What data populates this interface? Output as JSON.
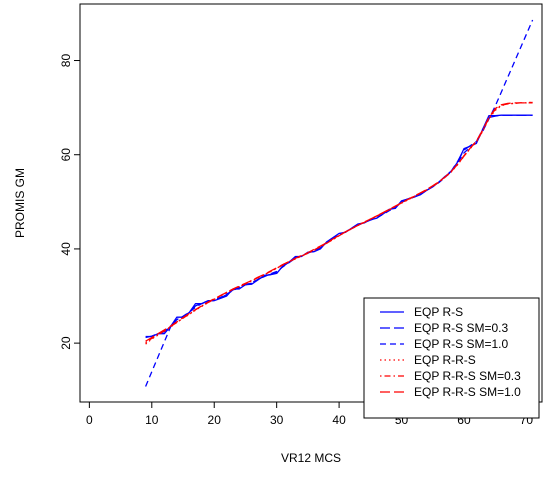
{
  "chart_data": {
    "type": "line",
    "xlabel": "VR12 MCS",
    "ylabel": "PROMIS GM",
    "xlim": [
      -1.5,
      72.5
    ],
    "ylim": [
      7.5,
      92
    ],
    "xticks": [
      0,
      10,
      20,
      30,
      40,
      50,
      60,
      70
    ],
    "yticks": [
      20,
      40,
      60,
      80
    ],
    "legend_position": "bottom-right",
    "series": [
      {
        "name": "EQP R-S",
        "color": "#0000FF",
        "dash": "solid",
        "x": [
          9,
          10,
          11,
          12,
          13,
          14,
          15,
          16,
          17,
          18,
          19,
          20,
          21,
          22,
          23,
          24,
          25,
          26,
          27,
          28,
          29,
          30,
          31,
          32,
          33,
          34,
          35,
          36,
          37,
          38,
          39,
          40,
          41,
          42,
          43,
          44,
          45,
          46,
          47,
          48,
          49,
          50,
          51,
          52,
          53,
          54,
          55,
          56,
          57,
          58,
          59,
          60,
          61,
          62,
          63,
          64,
          65,
          66,
          67,
          68,
          69,
          70,
          71
        ],
        "y": [
          21.4,
          21.4,
          22.0,
          22.0,
          23.5,
          25.5,
          25.5,
          26.5,
          28.4,
          28.4,
          29.0,
          29.0,
          29.5,
          30.0,
          31.5,
          31.5,
          32.4,
          32.5,
          33.4,
          34.4,
          34.5,
          34.8,
          36.4,
          37.2,
          38.4,
          38.4,
          39.3,
          39.4,
          40.0,
          41.5,
          42.4,
          43.3,
          43.5,
          44.4,
          45.3,
          45.5,
          46.2,
          46.5,
          47.4,
          48.4,
          48.6,
          50.2,
          50.6,
          51.0,
          51.5,
          52.4,
          53.2,
          54.2,
          55.4,
          56.5,
          58.5,
          61.3,
          61.8,
          62.4,
          65.4,
          68.3,
          68.3,
          68.4,
          68.4,
          68.4,
          68.4,
          68.4,
          68.4
        ]
      },
      {
        "name": "EQP R-S SM=0.3",
        "color": "#0000FF",
        "dash": "longdash",
        "x": [
          9,
          10,
          11,
          12,
          13,
          14,
          15,
          16,
          17,
          18,
          19,
          20,
          21,
          22,
          23,
          24,
          25,
          26,
          27,
          28,
          29,
          30,
          31,
          32,
          33,
          34,
          35,
          36,
          37,
          38,
          39,
          40,
          41,
          42,
          43,
          44,
          45,
          46,
          47,
          48,
          49,
          50,
          51,
          52,
          53,
          54,
          55,
          56,
          57,
          58,
          59,
          60,
          61,
          62,
          63,
          64,
          65,
          66,
          67,
          68,
          69,
          70,
          71
        ],
        "y": [
          21.2,
          21.5,
          22.0,
          22.4,
          23.6,
          25.0,
          25.6,
          26.5,
          27.9,
          28.5,
          28.9,
          29.1,
          29.6,
          30.3,
          31.3,
          31.7,
          32.4,
          32.7,
          33.5,
          34.2,
          34.6,
          35.1,
          36.3,
          37.2,
          38.2,
          38.5,
          39.2,
          39.6,
          40.2,
          41.4,
          42.3,
          43.1,
          43.6,
          44.4,
          45.2,
          45.6,
          46.2,
          46.6,
          47.4,
          48.3,
          48.8,
          50.1,
          50.6,
          51.1,
          51.6,
          52.4,
          53.3,
          54.2,
          55.4,
          56.6,
          58.6,
          61.0,
          61.9,
          62.8,
          65.4,
          67.9,
          68.2,
          68.4,
          68.4,
          68.4,
          68.4,
          68.4,
          68.4
        ]
      },
      {
        "name": "EQP R-S SM=1.0",
        "color": "#0000FF",
        "dash": "dashed",
        "x": [
          9,
          13,
          14,
          15,
          16,
          17,
          18,
          19,
          20,
          21,
          22,
          23,
          24,
          25,
          26,
          27,
          28,
          29,
          30,
          31,
          32,
          33,
          34,
          35,
          36,
          37,
          38,
          39,
          40,
          41,
          42,
          43,
          44,
          45,
          46,
          47,
          48,
          49,
          50,
          51,
          52,
          53,
          54,
          55,
          56,
          57,
          58,
          59,
          60,
          61,
          62,
          63,
          64,
          65,
          71
        ],
        "y": [
          10.8,
          23.4,
          25.0,
          25.7,
          26.6,
          27.6,
          28.4,
          28.9,
          29.2,
          29.7,
          30.4,
          31.2,
          31.8,
          32.4,
          32.8,
          33.5,
          34.1,
          34.7,
          35.2,
          36.2,
          37.1,
          38.0,
          38.5,
          39.1,
          39.7,
          40.3,
          41.3,
          42.2,
          43.0,
          43.6,
          44.3,
          45.0,
          45.6,
          46.1,
          46.6,
          47.3,
          48.1,
          48.8,
          49.9,
          50.5,
          51.0,
          51.6,
          52.4,
          53.2,
          54.1,
          55.2,
          56.5,
          58.3,
          60.4,
          61.6,
          62.8,
          65.0,
          67.6,
          70.3,
          88.6
        ]
      },
      {
        "name": "EQP R-R-S",
        "color": "#FF0000",
        "dash": "dotted",
        "x": [
          9,
          10,
          11,
          12,
          13,
          14,
          15,
          16,
          17,
          18,
          19,
          20,
          21,
          22,
          23,
          24,
          25,
          26,
          27,
          28,
          29,
          30,
          31,
          32,
          33,
          34,
          35,
          36,
          37,
          38,
          39,
          40,
          41,
          42,
          43,
          44,
          45,
          46,
          47,
          48,
          49,
          50,
          51,
          52,
          53,
          54,
          55,
          56,
          57,
          58,
          59,
          60,
          61,
          62,
          63,
          64,
          65,
          66,
          67,
          68,
          69,
          70,
          71
        ],
        "y": [
          19.8,
          20.9,
          21.7,
          22.5,
          23.4,
          24.4,
          25.3,
          26.1,
          27.0,
          27.8,
          28.6,
          29.3,
          30.0,
          30.7,
          31.4,
          32.0,
          32.6,
          33.2,
          33.8,
          34.5,
          35.2,
          35.9,
          36.6,
          37.3,
          37.9,
          38.5,
          39.1,
          39.7,
          40.4,
          41.2,
          42.0,
          42.8,
          43.6,
          44.3,
          45.0,
          45.7,
          46.3,
          46.9,
          47.6,
          48.3,
          49.0,
          49.7,
          50.4,
          51.1,
          51.8,
          52.5,
          53.3,
          54.2,
          55.2,
          56.4,
          57.9,
          59.7,
          61.3,
          62.7,
          65.0,
          67.6,
          69.4,
          70.4,
          70.8,
          70.9,
          71.0,
          71.0,
          71.2
        ]
      },
      {
        "name": "EQP R-R-S SM=0.3",
        "color": "#FF0000",
        "dash": "dashdot",
        "x": [
          9,
          10,
          11,
          12,
          13,
          14,
          15,
          16,
          17,
          18,
          19,
          20,
          21,
          22,
          23,
          24,
          25,
          26,
          27,
          28,
          29,
          30,
          31,
          32,
          33,
          34,
          35,
          36,
          37,
          38,
          39,
          40,
          41,
          42,
          43,
          44,
          45,
          46,
          47,
          48,
          49,
          50,
          51,
          52,
          53,
          54,
          55,
          56,
          57,
          58,
          59,
          60,
          61,
          62,
          63,
          64,
          65,
          66,
          67,
          68,
          69,
          70,
          71
        ],
        "y": [
          20.1,
          21.0,
          21.8,
          22.6,
          23.5,
          24.4,
          25.3,
          26.2,
          27.1,
          27.9,
          28.6,
          29.3,
          30.1,
          30.8,
          31.4,
          32.0,
          32.6,
          33.3,
          33.9,
          34.5,
          35.2,
          35.9,
          36.6,
          37.3,
          37.9,
          38.5,
          39.1,
          39.8,
          40.5,
          41.2,
          42.0,
          42.8,
          43.6,
          44.3,
          45.0,
          45.6,
          46.3,
          47.0,
          47.6,
          48.3,
          49.0,
          49.8,
          50.5,
          51.1,
          51.8,
          52.5,
          53.3,
          54.2,
          55.3,
          56.5,
          58.0,
          59.8,
          61.4,
          62.8,
          65.1,
          67.8,
          69.6,
          70.5,
          70.8,
          70.9,
          71.0,
          71.0,
          71.1
        ]
      },
      {
        "name": "EQP R-R-S SM=1.0",
        "color": "#FF0000",
        "dash": "longdash",
        "x": [
          9,
          10,
          11,
          12,
          13,
          14,
          15,
          16,
          17,
          18,
          19,
          20,
          21,
          22,
          23,
          24,
          25,
          26,
          27,
          28,
          29,
          30,
          31,
          32,
          33,
          34,
          35,
          36,
          37,
          38,
          39,
          40,
          41,
          42,
          43,
          44,
          45,
          46,
          47,
          48,
          49,
          50,
          51,
          52,
          53,
          54,
          55,
          56,
          57,
          58,
          59,
          60,
          61,
          62,
          63,
          64,
          65,
          66,
          67,
          68,
          69,
          70,
          71
        ],
        "y": [
          20.4,
          21.2,
          22.0,
          22.8,
          23.6,
          24.5,
          25.4,
          26.3,
          27.1,
          27.9,
          28.7,
          29.4,
          30.1,
          30.8,
          31.5,
          32.1,
          32.7,
          33.3,
          34.0,
          34.6,
          35.3,
          36.0,
          36.7,
          37.3,
          38.0,
          38.6,
          39.2,
          39.9,
          40.6,
          41.3,
          42.1,
          42.9,
          43.6,
          44.3,
          45.0,
          45.7,
          46.3,
          47.0,
          47.7,
          48.4,
          49.1,
          49.8,
          50.5,
          51.2,
          51.9,
          52.6,
          53.4,
          54.3,
          55.3,
          56.5,
          58.0,
          59.7,
          61.4,
          62.9,
          65.2,
          67.9,
          69.8,
          70.6,
          70.9,
          71.0,
          71.0,
          71.0,
          71.0
        ]
      }
    ]
  }
}
